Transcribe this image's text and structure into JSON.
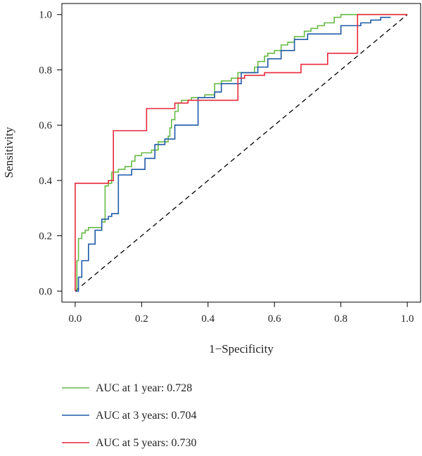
{
  "chart_data": {
    "type": "line",
    "title": "",
    "xlabel": "1−Specificity",
    "ylabel": "Sensitivity",
    "xlim": [
      -0.04,
      1.04
    ],
    "ylim": [
      -0.04,
      1.04
    ],
    "xticks": [
      0.0,
      0.2,
      0.4,
      0.6,
      0.8,
      1.0
    ],
    "yticks": [
      0.0,
      0.2,
      0.4,
      0.6,
      0.8,
      1.0
    ],
    "xtick_labels": [
      "0.0",
      "0.2",
      "0.4",
      "0.6",
      "0.8",
      "1.0"
    ],
    "ytick_labels": [
      "0.0",
      "0.2",
      "0.4",
      "0.6",
      "0.8",
      "1.0"
    ],
    "grid": false,
    "legend_position": "bottom-left",
    "reference_line": {
      "style": "dashed",
      "color": "#000000",
      "x": [
        0,
        1
      ],
      "y": [
        0,
        1
      ]
    },
    "series": [
      {
        "name": "AUC at 1 year: 0.728",
        "color": "#66bb44",
        "x": [
          0,
          0.005,
          0.005,
          0.01,
          0.01,
          0.02,
          0.02,
          0.03,
          0.03,
          0.04,
          0.04,
          0.06,
          0.06,
          0.08,
          0.08,
          0.09,
          0.09,
          0.1,
          0.1,
          0.11,
          0.11,
          0.13,
          0.13,
          0.15,
          0.15,
          0.17,
          0.17,
          0.18,
          0.18,
          0.2,
          0.2,
          0.23,
          0.23,
          0.25,
          0.25,
          0.28,
          0.28,
          0.285,
          0.285,
          0.29,
          0.29,
          0.3,
          0.3,
          0.31,
          0.31,
          0.32,
          0.32,
          0.35,
          0.35,
          0.39,
          0.39,
          0.42,
          0.42,
          0.44,
          0.44,
          0.47,
          0.47,
          0.49,
          0.49,
          0.52,
          0.52,
          0.54,
          0.54,
          0.55,
          0.55,
          0.57,
          0.57,
          0.58,
          0.58,
          0.6,
          0.6,
          0.62,
          0.62,
          0.64,
          0.64,
          0.66,
          0.66,
          0.69,
          0.69,
          0.71,
          0.71,
          0.73,
          0.73,
          0.75,
          0.75,
          0.78,
          0.78,
          0.8,
          0.8,
          0.83,
          0.83,
          0.86,
          0.86,
          0.89,
          0.89,
          0.95,
          0.95,
          1.0
        ],
        "y": [
          0,
          0,
          0.11,
          0.11,
          0.19,
          0.19,
          0.21,
          0.21,
          0.22,
          0.22,
          0.23,
          0.23,
          0.23,
          0.23,
          0.25,
          0.25,
          0.38,
          0.38,
          0.39,
          0.39,
          0.43,
          0.43,
          0.44,
          0.44,
          0.45,
          0.45,
          0.47,
          0.47,
          0.49,
          0.49,
          0.5,
          0.5,
          0.51,
          0.51,
          0.54,
          0.54,
          0.56,
          0.56,
          0.59,
          0.59,
          0.62,
          0.62,
          0.65,
          0.65,
          0.68,
          0.68,
          0.69,
          0.69,
          0.7,
          0.7,
          0.71,
          0.71,
          0.75,
          0.75,
          0.76,
          0.76,
          0.77,
          0.77,
          0.79,
          0.79,
          0.79,
          0.79,
          0.81,
          0.81,
          0.83,
          0.83,
          0.85,
          0.85,
          0.86,
          0.86,
          0.87,
          0.87,
          0.89,
          0.89,
          0.9,
          0.9,
          0.92,
          0.92,
          0.94,
          0.94,
          0.95,
          0.95,
          0.96,
          0.96,
          0.97,
          0.97,
          0.99,
          0.99,
          1.0,
          1.0,
          1.0,
          1.0,
          1.0,
          1.0,
          1.0,
          1.0,
          1.0,
          1.0
        ]
      },
      {
        "name": "AUC at 3 years: 0.704",
        "color": "#1f5aa8",
        "x": [
          0,
          0.01,
          0.01,
          0.02,
          0.02,
          0.04,
          0.04,
          0.06,
          0.06,
          0.08,
          0.08,
          0.1,
          0.1,
          0.11,
          0.11,
          0.13,
          0.13,
          0.17,
          0.17,
          0.21,
          0.21,
          0.24,
          0.24,
          0.27,
          0.27,
          0.3,
          0.3,
          0.37,
          0.37,
          0.42,
          0.42,
          0.44,
          0.44,
          0.5,
          0.5,
          0.55,
          0.55,
          0.58,
          0.58,
          0.62,
          0.62,
          0.66,
          0.66,
          0.7,
          0.7,
          0.8,
          0.8,
          0.86,
          0.86,
          0.89,
          0.89,
          0.92,
          0.92,
          0.95
        ],
        "y": [
          0,
          0,
          0.05,
          0.05,
          0.11,
          0.11,
          0.17,
          0.17,
          0.22,
          0.22,
          0.26,
          0.26,
          0.27,
          0.27,
          0.28,
          0.28,
          0.42,
          0.42,
          0.44,
          0.44,
          0.48,
          0.48,
          0.53,
          0.53,
          0.55,
          0.55,
          0.6,
          0.6,
          0.7,
          0.7,
          0.72,
          0.72,
          0.75,
          0.75,
          0.79,
          0.79,
          0.81,
          0.81,
          0.84,
          0.84,
          0.87,
          0.87,
          0.91,
          0.91,
          0.93,
          0.93,
          0.96,
          0.96,
          0.97,
          0.97,
          0.98,
          0.98,
          0.99,
          0.99
        ]
      },
      {
        "name": "AUC at 5 years: 0.730",
        "color": "#e8283a",
        "x": [
          0,
          0,
          0.1,
          0.1,
          0.115,
          0.115,
          0.215,
          0.215,
          0.3,
          0.3,
          0.34,
          0.34,
          0.35,
          0.35,
          0.37,
          0.37,
          0.49,
          0.49,
          0.51,
          0.51,
          0.57,
          0.57,
          0.68,
          0.68,
          0.76,
          0.76,
          0.85,
          0.85,
          0.86,
          0.86,
          1.0
        ],
        "y": [
          0,
          0.39,
          0.39,
          0.4,
          0.4,
          0.58,
          0.58,
          0.66,
          0.66,
          0.68,
          0.68,
          0.69,
          0.69,
          0.69,
          0.69,
          0.69,
          0.69,
          0.77,
          0.77,
          0.78,
          0.78,
          0.79,
          0.79,
          0.82,
          0.82,
          0.86,
          0.86,
          1.0,
          1.0,
          1.0,
          1.0
        ]
      }
    ]
  }
}
